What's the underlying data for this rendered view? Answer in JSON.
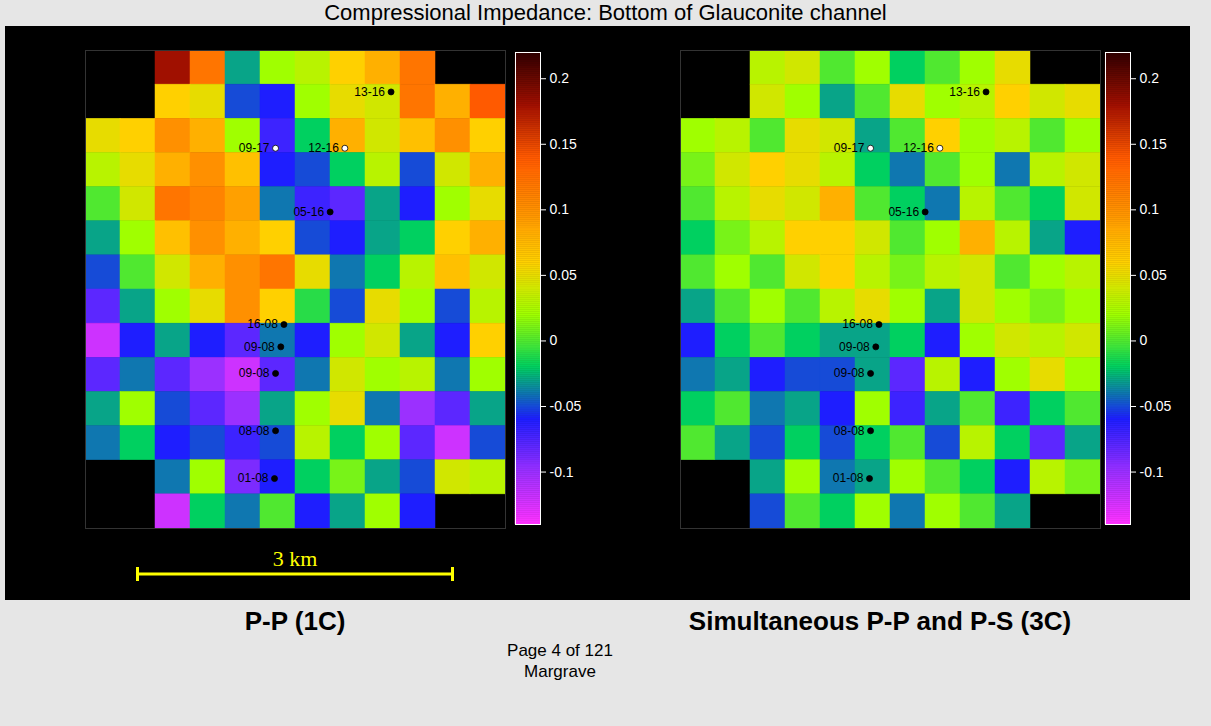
{
  "slide": {
    "title": "Compressional Impedance: Bottom of Glauconite channel",
    "page": "Page 4 of 121",
    "author": "Margrave"
  },
  "chart_data": [
    {
      "type": "heatmap",
      "title": "P-P (1C)",
      "xlim": [
        0,
        4
      ],
      "ylim": [
        0,
        4.5
      ],
      "tick_labels": false,
      "colorbar": {
        "range": [
          -0.14,
          0.22
        ],
        "ticks": [
          -0.1,
          -0.05,
          0,
          0.05,
          0.1,
          0.15,
          0.2
        ],
        "colors": [
          "#ff33ff",
          "#9b30ff",
          "#1e1eff",
          "#00d060",
          "#a0ff00",
          "#ffd000",
          "#ff9000",
          "#ff5a00",
          "#a01000",
          "#300000"
        ]
      },
      "cells": [
        [
          null,
          null,
          0.18,
          0.12,
          -0.03,
          0.02,
          0.03,
          0.06,
          0.08,
          0.12,
          null,
          null
        ],
        [
          null,
          null,
          0.06,
          0.05,
          -0.05,
          -0.06,
          0.02,
          0.05,
          0.04,
          0.12,
          0.08,
          0.14
        ],
        [
          0.05,
          0.06,
          0.1,
          0.08,
          0.02,
          -0.07,
          -0.02,
          0.08,
          0.04,
          0.07,
          0.1,
          0.06
        ],
        [
          0.03,
          0.05,
          0.08,
          0.1,
          0.07,
          -0.06,
          -0.05,
          -0.02,
          0.03,
          -0.05,
          0.04,
          0.08
        ],
        [
          0.0,
          0.04,
          0.12,
          0.11,
          0.09,
          -0.04,
          -0.07,
          -0.08,
          -0.03,
          -0.06,
          0.02,
          0.05
        ],
        [
          -0.03,
          0.02,
          0.07,
          0.1,
          0.08,
          0.06,
          -0.05,
          -0.06,
          -0.03,
          -0.02,
          0.06,
          0.08
        ],
        [
          -0.05,
          0.0,
          0.04,
          0.08,
          0.1,
          0.12,
          0.05,
          -0.04,
          -0.02,
          0.03,
          0.07,
          0.04
        ],
        [
          -0.08,
          -0.03,
          0.02,
          0.05,
          0.1,
          0.06,
          -0.01,
          -0.05,
          0.05,
          0.02,
          -0.05,
          0.03
        ],
        [
          -0.12,
          -0.06,
          -0.03,
          -0.06,
          -0.08,
          -0.04,
          -0.06,
          0.02,
          0.04,
          -0.03,
          -0.06,
          0.06
        ],
        [
          -0.08,
          -0.04,
          -0.08,
          -0.1,
          -0.12,
          -0.08,
          -0.04,
          0.04,
          0.02,
          0.03,
          -0.04,
          0.02
        ],
        [
          -0.03,
          0.02,
          -0.05,
          -0.08,
          -0.1,
          -0.03,
          0.02,
          0.05,
          -0.04,
          -0.1,
          -0.08,
          -0.03
        ],
        [
          -0.04,
          -0.02,
          -0.06,
          -0.05,
          -0.07,
          -0.05,
          0.03,
          -0.02,
          0.02,
          -0.08,
          -0.12,
          -0.05
        ],
        [
          null,
          null,
          -0.04,
          0.02,
          -0.09,
          -0.06,
          -0.02,
          0.01,
          -0.03,
          -0.05,
          0.04,
          0.03
        ],
        [
          null,
          null,
          -0.12,
          -0.02,
          -0.04,
          0.0,
          -0.06,
          -0.03,
          0.02,
          -0.06,
          null,
          null
        ]
      ],
      "wells": [
        {
          "name": "13-16",
          "x": 2.91,
          "y": 4.11,
          "color": "black"
        },
        {
          "name": "09-17",
          "x": 1.81,
          "y": 3.58,
          "color": "white"
        },
        {
          "name": "12-16",
          "x": 2.47,
          "y": 3.58,
          "color": "white"
        },
        {
          "name": "05-16",
          "x": 2.33,
          "y": 2.98,
          "color": "black"
        },
        {
          "name": "16-08",
          "x": 1.89,
          "y": 1.92,
          "color": "black"
        },
        {
          "name": "09-08",
          "x": 1.86,
          "y": 1.71,
          "color": "black"
        },
        {
          "name": "09-08",
          "x": 1.81,
          "y": 1.46,
          "color": "black"
        },
        {
          "name": "08-08",
          "x": 1.81,
          "y": 0.92,
          "color": "black"
        },
        {
          "name": "01-08",
          "x": 1.8,
          "y": 0.47,
          "color": "black"
        }
      ],
      "scale_bar": {
        "label": "3 km",
        "length": 3,
        "color": "#ffff00"
      }
    },
    {
      "type": "heatmap",
      "title": "Simultaneous P-P and P-S (3C)",
      "xlim": [
        0,
        4
      ],
      "ylim": [
        0,
        4.5
      ],
      "tick_labels": false,
      "colorbar": {
        "range": [
          -0.14,
          0.22
        ],
        "ticks": [
          -0.1,
          -0.05,
          0,
          0.05,
          0.1,
          0.15,
          0.2
        ],
        "colors": [
          "#ff33ff",
          "#9b30ff",
          "#1e1eff",
          "#00d060",
          "#a0ff00",
          "#ffd000",
          "#ff9000",
          "#ff5a00",
          "#a01000",
          "#300000"
        ]
      },
      "cells": [
        [
          null,
          null,
          0.03,
          0.04,
          0.0,
          0.02,
          -0.02,
          0.0,
          0.02,
          0.05,
          null,
          null
        ],
        [
          null,
          null,
          0.04,
          0.02,
          -0.03,
          0.0,
          0.05,
          0.02,
          0.03,
          0.06,
          0.04,
          0.05
        ],
        [
          0.02,
          0.03,
          0.0,
          0.05,
          0.04,
          -0.03,
          0.0,
          0.06,
          0.02,
          0.03,
          0.0,
          0.02
        ],
        [
          0.01,
          0.04,
          0.06,
          0.05,
          0.03,
          -0.02,
          -0.04,
          0.0,
          0.02,
          -0.04,
          0.03,
          0.04
        ],
        [
          0.0,
          0.03,
          0.05,
          0.04,
          0.08,
          0.0,
          -0.02,
          -0.04,
          0.03,
          0.0,
          -0.02,
          0.04
        ],
        [
          -0.02,
          0.01,
          0.03,
          0.06,
          0.06,
          0.04,
          0.0,
          0.02,
          0.08,
          0.03,
          -0.03,
          -0.06
        ],
        [
          0.0,
          0.02,
          0.0,
          0.04,
          0.06,
          0.03,
          0.01,
          0.03,
          0.04,
          0.0,
          0.02,
          0.03
        ],
        [
          -0.03,
          0.0,
          0.02,
          0.0,
          0.03,
          0.05,
          0.02,
          -0.03,
          0.04,
          0.02,
          0.01,
          0.02
        ],
        [
          -0.06,
          -0.02,
          0.0,
          -0.02,
          -0.03,
          -0.03,
          -0.02,
          -0.06,
          0.02,
          0.04,
          0.03,
          0.04
        ],
        [
          -0.04,
          -0.03,
          -0.06,
          -0.05,
          -0.05,
          -0.03,
          -0.08,
          0.03,
          -0.06,
          0.02,
          0.05,
          0.02
        ],
        [
          -0.02,
          0.0,
          -0.04,
          -0.03,
          -0.06,
          0.02,
          -0.07,
          -0.03,
          0.0,
          -0.07,
          -0.02,
          0.0
        ],
        [
          0.0,
          -0.03,
          -0.05,
          -0.02,
          -0.05,
          -0.02,
          0.0,
          -0.05,
          0.03,
          -0.02,
          -0.08,
          -0.03
        ],
        [
          null,
          null,
          -0.03,
          0.02,
          -0.04,
          -0.03,
          0.02,
          0.0,
          -0.02,
          -0.06,
          0.03,
          0.01
        ],
        [
          null,
          null,
          -0.05,
          0.0,
          -0.02,
          0.02,
          -0.04,
          0.02,
          0.0,
          -0.03,
          null,
          null
        ]
      ],
      "wells": [
        {
          "name": "13-16",
          "x": 2.91,
          "y": 4.11,
          "color": "black"
        },
        {
          "name": "09-17",
          "x": 1.81,
          "y": 3.58,
          "color": "white"
        },
        {
          "name": "12-16",
          "x": 2.47,
          "y": 3.58,
          "color": "white"
        },
        {
          "name": "05-16",
          "x": 2.33,
          "y": 2.98,
          "color": "black"
        },
        {
          "name": "16-08",
          "x": 1.89,
          "y": 1.92,
          "color": "black"
        },
        {
          "name": "09-08",
          "x": 1.86,
          "y": 1.71,
          "color": "black"
        },
        {
          "name": "09-08",
          "x": 1.81,
          "y": 1.46,
          "color": "black"
        },
        {
          "name": "08-08",
          "x": 1.81,
          "y": 0.92,
          "color": "black"
        },
        {
          "name": "01-08",
          "x": 1.8,
          "y": 0.47,
          "color": "black"
        }
      ]
    }
  ]
}
